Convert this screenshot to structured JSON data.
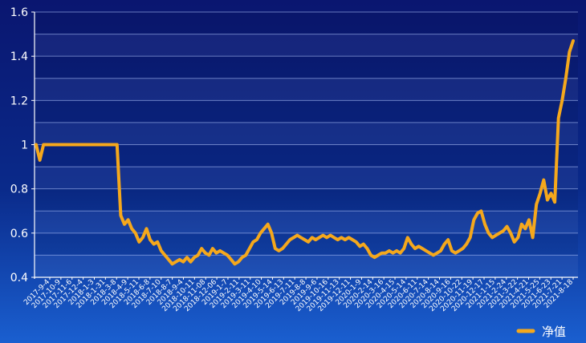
{
  "chart_data": {
    "type": "line",
    "title": "",
    "xlabel": "",
    "ylabel": "",
    "ylim": [
      0.4,
      1.6
    ],
    "y_ticks": [
      "0.4",
      "0.6",
      "0.8",
      "1",
      "1.2",
      "1.4",
      "1.6"
    ],
    "x_tick_labels": [
      "2017-9-4",
      "2017-10-9",
      "2017-11-6",
      "2017-12-4",
      "2018-1-3",
      "2018-1-31",
      "2018-3-8",
      "2018-4-9",
      "2018-5-11",
      "2018-6-8",
      "2018-7-10",
      "2018-8-7",
      "2018-9-4",
      "2018-10-11",
      "2018-11-08",
      "2018-12-06",
      "2019-1-7",
      "2019-2-11",
      "2019-3-11",
      "2019-4-10",
      "2019-5-14",
      "2019-6-13",
      "2019-7-11",
      "2019-8-8",
      "2019-9-6",
      "2019-10-16",
      "2019-11-13",
      "2019-12-11",
      "2020-1-9",
      "2020-2-14",
      "2020-3-16",
      "2020-4-15",
      "2020-5-14",
      "2020-6-11",
      "2020-7-14",
      "2020-8-14",
      "2020-9-16",
      "2020-10-22",
      "2020-11-19",
      "2020-12-17",
      "2021-1-15",
      "2021-2-24",
      "2021-3-22",
      "2021-4-21",
      "2021-5-25",
      "2021-6-23",
      "2021-7-21",
      "2021-8-18"
    ],
    "grid": true,
    "legend_position": "bottom-right",
    "series": [
      {
        "name": "净值",
        "color": "#f5a81c",
        "values": [
          1.0,
          0.93,
          1.0,
          1.0,
          1.0,
          1.0,
          1.0,
          1.0,
          1.0,
          1.0,
          1.0,
          1.0,
          1.0,
          1.0,
          1.0,
          1.0,
          1.0,
          1.0,
          1.0,
          1.0,
          1.0,
          1.0,
          1.0,
          0.68,
          0.64,
          0.66,
          0.62,
          0.6,
          0.56,
          0.58,
          0.62,
          0.57,
          0.55,
          0.56,
          0.52,
          0.5,
          0.48,
          0.46,
          0.47,
          0.48,
          0.47,
          0.49,
          0.47,
          0.49,
          0.5,
          0.53,
          0.51,
          0.5,
          0.53,
          0.51,
          0.52,
          0.51,
          0.5,
          0.48,
          0.46,
          0.47,
          0.49,
          0.5,
          0.53,
          0.56,
          0.57,
          0.6,
          0.62,
          0.64,
          0.6,
          0.53,
          0.52,
          0.53,
          0.55,
          0.57,
          0.58,
          0.59,
          0.58,
          0.57,
          0.56,
          0.58,
          0.57,
          0.58,
          0.59,
          0.58,
          0.59,
          0.58,
          0.57,
          0.58,
          0.57,
          0.58,
          0.57,
          0.56,
          0.54,
          0.55,
          0.53,
          0.5,
          0.49,
          0.5,
          0.51,
          0.51,
          0.52,
          0.51,
          0.52,
          0.51,
          0.53,
          0.58,
          0.55,
          0.53,
          0.54,
          0.53,
          0.52,
          0.51,
          0.5,
          0.51,
          0.52,
          0.55,
          0.57,
          0.52,
          0.51,
          0.52,
          0.53,
          0.55,
          0.58,
          0.66,
          0.69,
          0.7,
          0.64,
          0.6,
          0.58,
          0.59,
          0.6,
          0.61,
          0.63,
          0.6,
          0.56,
          0.58,
          0.64,
          0.62,
          0.66,
          0.58,
          0.73,
          0.78,
          0.84,
          0.75,
          0.78,
          0.74,
          1.12,
          1.2,
          1.3,
          1.42,
          1.47
        ]
      }
    ]
  }
}
